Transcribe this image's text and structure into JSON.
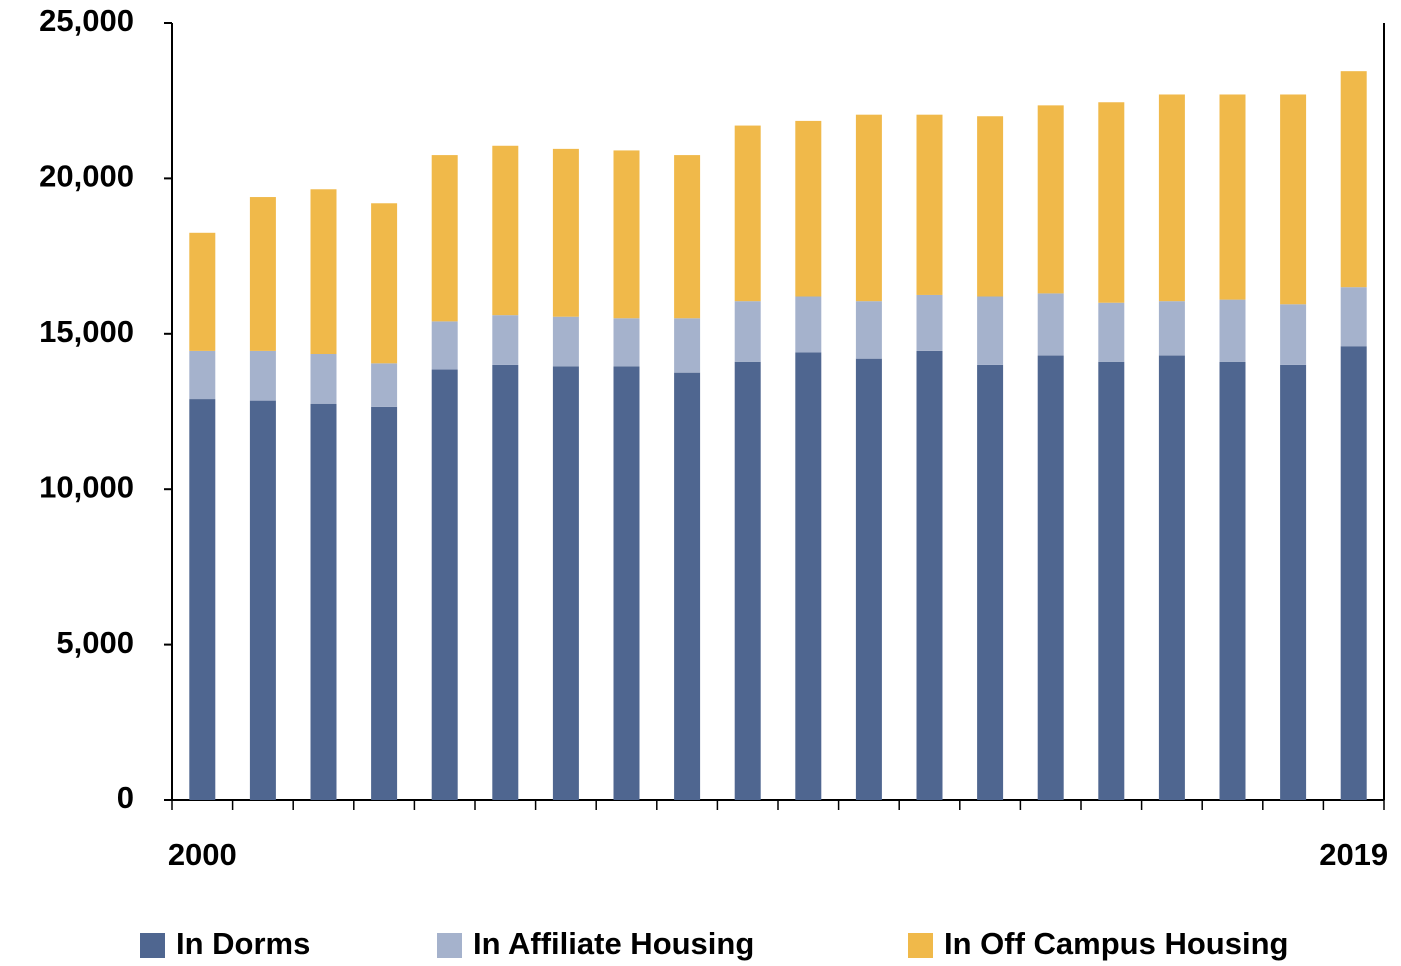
{
  "chart_data": {
    "type": "stacked_bar",
    "categories": [
      "2000",
      null,
      null,
      null,
      null,
      null,
      null,
      null,
      null,
      null,
      null,
      null,
      null,
      null,
      null,
      null,
      null,
      null,
      null,
      "2019"
    ],
    "series": [
      {
        "name": "In Dorms",
        "color": "#4f6690",
        "values": [
          12900,
          12850,
          12750,
          12650,
          13850,
          14000,
          13950,
          13950,
          13750,
          14100,
          14400,
          14200,
          14450,
          14000,
          14300,
          14100,
          14300,
          14100,
          14000,
          14600
        ]
      },
      {
        "name": "In Affiliate Housing",
        "color": "#a5b2cc",
        "values": [
          1550,
          1600,
          1600,
          1400,
          1550,
          1600,
          1600,
          1550,
          1750,
          1950,
          1800,
          1850,
          1800,
          2200,
          2000,
          1900,
          1750,
          2000,
          1950,
          1900
        ]
      },
      {
        "name": "In Off Campus Housing",
        "color": "#f0b94a",
        "values": [
          3800,
          4950,
          5300,
          5150,
          5350,
          5450,
          5400,
          5400,
          5250,
          5650,
          5650,
          6000,
          5800,
          5800,
          6050,
          6450,
          6650,
          6600,
          6750,
          6950
        ]
      }
    ],
    "ylim": [
      0,
      25000
    ],
    "yticks": [
      0,
      {
        "value": 5000,
        "label": "5,000"
      },
      {
        "value": 10000,
        "label": "10,000"
      },
      {
        "value": 15000,
        "label": "15,000"
      },
      {
        "value": 20000,
        "label": "20,000"
      },
      {
        "value": 25000,
        "label": "25,000"
      }
    ],
    "grid": false,
    "legend": "bottom"
  }
}
